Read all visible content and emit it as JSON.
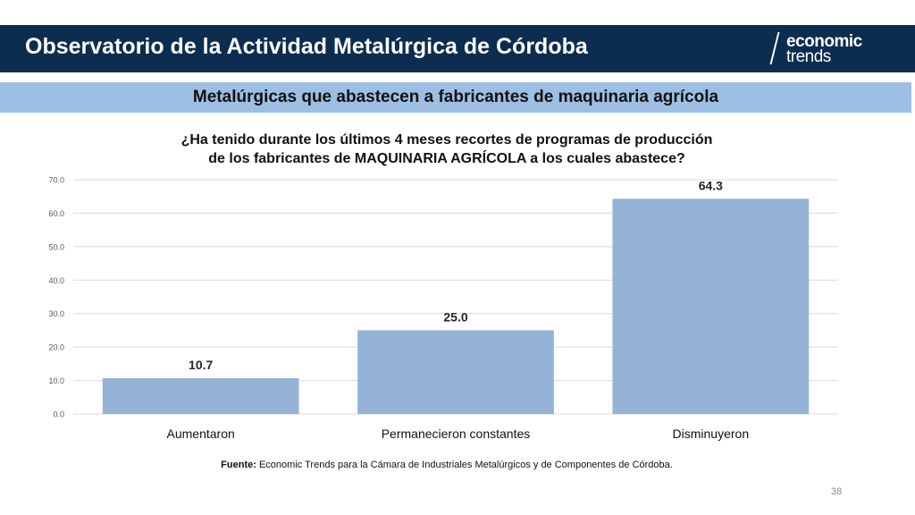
{
  "header": {
    "title": "Observatorio de la Actividad Metalúrgica de Córdoba"
  },
  "logo": {
    "line1": "economic",
    "line2": "trends"
  },
  "subheader": {
    "title": "Metalúrgicas que abastecen a fabricantes de maquinaria agrícola"
  },
  "chart_data": {
    "type": "bar",
    "title_line1": "¿Ha tenido durante los últimos 4 meses recortes de programas de producción",
    "title_line2": "de los fabricantes de MAQUINARIA AGRÍCOLA a los cuales abastece?",
    "categories": [
      "Aumentaron",
      "Permanecieron constantes",
      "Disminuyeron"
    ],
    "values": [
      10.7,
      25.0,
      64.3
    ],
    "data_labels": [
      "10.7",
      "25.0",
      "64.3"
    ],
    "ylim": [
      0,
      70
    ],
    "yticks": [
      "0.0",
      "10.0",
      "20.0",
      "30.0",
      "40.0",
      "50.0",
      "60.0",
      "70.0"
    ],
    "grid": true,
    "bar_color": "#95b3d7"
  },
  "footer": {
    "source_label": "Fuente:",
    "source_text": " Economic Trends para la Cámara de Industriales Metalúrgicos y de Componentes de Córdoba.",
    "page_number": "38"
  },
  "colors": {
    "header_bg": "#0c2d4f",
    "subheader_bg": "#9dbfe4"
  }
}
